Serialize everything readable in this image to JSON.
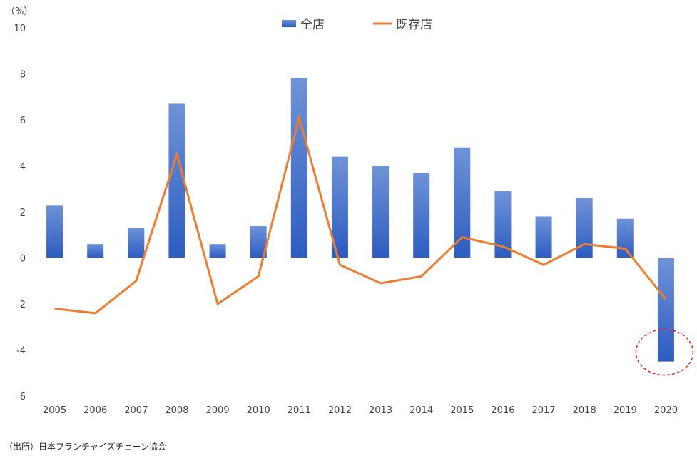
{
  "chart_data": {
    "type": "bar",
    "unit_label": "（%）",
    "categories": [
      "2005",
      "2006",
      "2007",
      "2008",
      "2009",
      "2010",
      "2011",
      "2012",
      "2013",
      "2014",
      "2015",
      "2016",
      "2017",
      "2018",
      "2019",
      "2020"
    ],
    "series": [
      {
        "name": "全店",
        "type": "bar",
        "color": "#3a68c8",
        "values": [
          2.3,
          0.6,
          1.3,
          6.7,
          0.6,
          1.4,
          7.8,
          4.4,
          4.0,
          3.7,
          4.8,
          2.9,
          1.8,
          2.6,
          1.7,
          -4.5
        ]
      },
      {
        "name": "既存店",
        "type": "line",
        "color": "#ed7d31",
        "values": [
          -2.2,
          -2.4,
          -1.0,
          4.5,
          -2.0,
          -0.8,
          6.1,
          -0.3,
          -1.1,
          -0.8,
          0.9,
          0.5,
          -0.3,
          0.6,
          0.4,
          -1.8
        ]
      }
    ],
    "yticks": [
      10,
      8,
      6,
      4,
      2,
      0,
      -2,
      -4,
      -6
    ],
    "ylim": [
      -6,
      10
    ],
    "legend_position": "top-center",
    "grid": false,
    "annotation": {
      "type": "dashed-circle",
      "color": "#e02020",
      "target_category": "2020",
      "target_value": -4.5
    },
    "source_note": "（出所）日本フランチャイズチェーン協会"
  }
}
